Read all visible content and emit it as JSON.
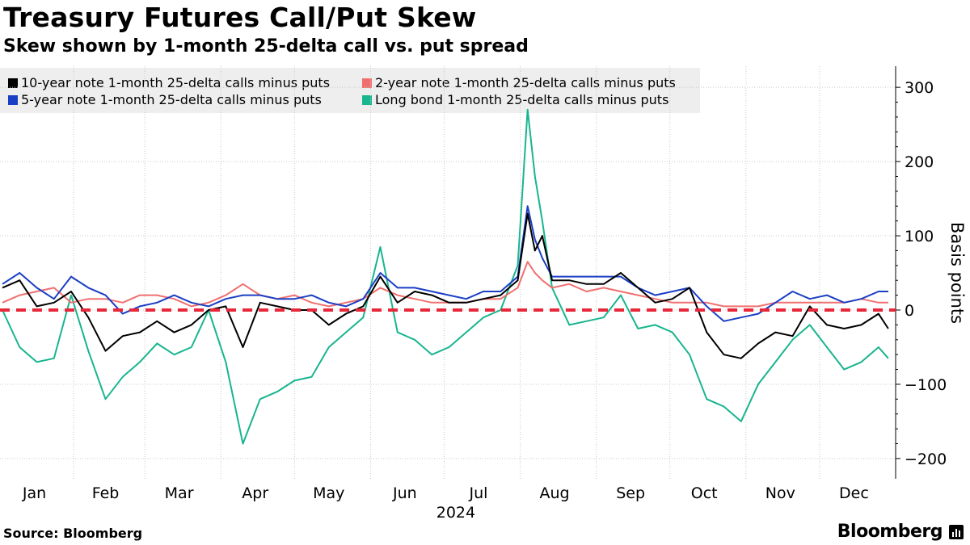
{
  "chart_data": {
    "type": "line",
    "title": "Treasury Futures Call/Put Skew",
    "subtitle": "Skew shown by 1-month 25-delta call vs. put spread",
    "ylabel": "Basis points",
    "xlabel": "2024",
    "ylim": [
      -225,
      330
    ],
    "yticks": [
      300,
      200,
      100,
      0,
      -100,
      -200
    ],
    "ytick_labels": [
      "300",
      "200",
      "100",
      "0",
      "−100",
      "−200"
    ],
    "months": [
      {
        "label": "Jan",
        "day": 15
      },
      {
        "label": "Feb",
        "day": 44
      },
      {
        "label": "Mar",
        "day": 74
      },
      {
        "label": "Apr",
        "day": 105
      },
      {
        "label": "May",
        "day": 135
      },
      {
        "label": "Jun",
        "day": 166
      },
      {
        "label": "Jul",
        "day": 196
      },
      {
        "label": "Aug",
        "day": 227
      },
      {
        "label": "Sep",
        "day": 258
      },
      {
        "label": "Oct",
        "day": 288
      },
      {
        "label": "Nov",
        "day": 319
      },
      {
        "label": "Dec",
        "day": 349
      }
    ],
    "month_boundaries": [
      31,
      60,
      91,
      121,
      152,
      182,
      213,
      244,
      274,
      305,
      335
    ],
    "x": [
      2,
      9,
      16,
      23,
      30,
      37,
      44,
      51,
      58,
      65,
      72,
      79,
      86,
      93,
      100,
      107,
      114,
      121,
      128,
      135,
      142,
      149,
      156,
      163,
      170,
      177,
      184,
      191,
      198,
      205,
      212,
      216,
      219,
      222,
      226,
      233,
      240,
      247,
      254,
      261,
      268,
      275,
      282,
      289,
      296,
      303,
      310,
      317,
      324,
      331,
      338,
      345,
      352,
      359,
      363
    ],
    "reference_line": {
      "y": 0,
      "color": "#e8283a",
      "style": "dashed"
    },
    "series": [
      {
        "name": "10-year note 1-month 25-delta calls minus puts",
        "color": "#000000",
        "values": [
          30,
          40,
          5,
          10,
          25,
          -10,
          -55,
          -35,
          -30,
          -15,
          -30,
          -20,
          0,
          5,
          -50,
          10,
          5,
          0,
          0,
          -20,
          -5,
          5,
          45,
          10,
          25,
          20,
          10,
          10,
          15,
          20,
          40,
          130,
          80,
          100,
          40,
          40,
          35,
          35,
          50,
          30,
          10,
          15,
          30,
          -30,
          -60,
          -65,
          -45,
          -30,
          -35,
          5,
          -20,
          -25,
          -20,
          -5,
          -25
        ]
      },
      {
        "name": "2-year note 1-month 25-delta calls minus puts",
        "color": "#f07070",
        "values": [
          10,
          20,
          25,
          30,
          10,
          15,
          15,
          10,
          20,
          20,
          15,
          5,
          10,
          20,
          35,
          20,
          15,
          20,
          10,
          5,
          10,
          15,
          30,
          20,
          15,
          10,
          10,
          10,
          15,
          15,
          30,
          65,
          50,
          40,
          30,
          35,
          25,
          30,
          25,
          20,
          15,
          10,
          10,
          10,
          5,
          5,
          5,
          10,
          10,
          10,
          10,
          10,
          15,
          10,
          10
        ]
      },
      {
        "name": "5-year note 1-month 25-delta calls minus puts",
        "color": "#1a3fc4",
        "values": [
          35,
          50,
          30,
          15,
          45,
          30,
          20,
          -5,
          5,
          10,
          20,
          10,
          5,
          15,
          20,
          20,
          15,
          15,
          20,
          10,
          5,
          15,
          50,
          30,
          30,
          25,
          20,
          15,
          25,
          25,
          45,
          140,
          95,
          70,
          45,
          45,
          45,
          45,
          45,
          30,
          20,
          25,
          30,
          5,
          -15,
          -10,
          -5,
          10,
          25,
          15,
          20,
          10,
          15,
          25,
          25
        ]
      },
      {
        "name": "Long bond 1-month 25-delta calls minus puts",
        "color": "#18b58e",
        "values": [
          0,
          -50,
          -70,
          -65,
          20,
          -55,
          -120,
          -90,
          -70,
          -45,
          -60,
          -50,
          0,
          -70,
          -180,
          -120,
          -110,
          -95,
          -90,
          -50,
          -30,
          -10,
          85,
          -30,
          -40,
          -60,
          -50,
          -30,
          -10,
          0,
          60,
          270,
          180,
          120,
          30,
          -20,
          -15,
          -10,
          20,
          -25,
          -20,
          -30,
          -60,
          -120,
          -130,
          -150,
          -100,
          -70,
          -40,
          -20,
          -50,
          -80,
          -70,
          -50,
          -65
        ]
      }
    ]
  },
  "source_label": "Source: Bloomberg",
  "brand_label": "Bloomberg"
}
